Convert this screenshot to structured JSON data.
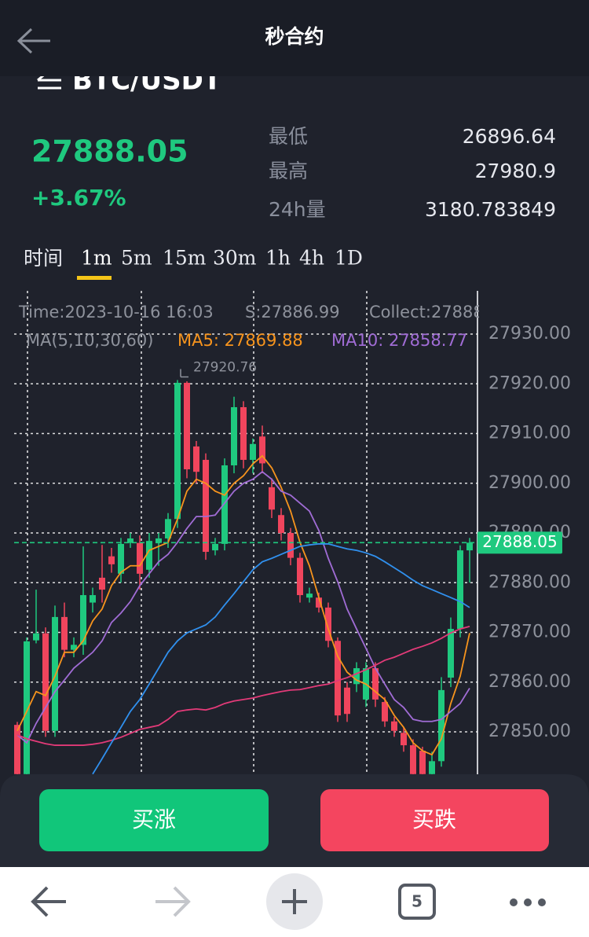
{
  "header": {
    "title": "秒合约"
  },
  "ticker": {
    "symbol": "BTC/USDT",
    "price": "27888.05",
    "change": "+3.67%",
    "stats": [
      {
        "label": "最低",
        "value": "26896.64"
      },
      {
        "label": "最高",
        "value": "27980.9"
      },
      {
        "label": "24h量",
        "value": "3180.783849"
      }
    ]
  },
  "tabs": {
    "label": "时间",
    "intervals": [
      "1m",
      "5m",
      "15m",
      "30m",
      "1h",
      "4h",
      "1D"
    ],
    "active": 0
  },
  "chart_data": {
    "type": "candlestick",
    "info": [
      "Time:2023-10-16 16:03",
      "S:27886.99",
      "Collect:27888"
    ],
    "ma_legend": "MA(5,10,30,60)",
    "up_color": "#1fc97f",
    "down_color": "#f0455d",
    "open": [
      27851.4,
      27841.5,
      27868.4,
      27869.8,
      27850.2,
      27873.1,
      27866.5,
      27867.5,
      27876,
      27881,
      27885.3,
      27881.8,
      27888,
      27888,
      27882.6,
      27888,
      27888.9,
      27892.8,
      27920.2,
      27907.4,
      27904.7,
      27886.5,
      27887.8,
      27903.6,
      27915.3,
      27904.7,
      27909.4,
      27899.2,
      27893.6,
      27890,
      27885,
      27877,
      27877,
      27875,
      27868.3,
      27858.9,
      27859.6,
      27856.5,
      27862.8,
      27856,
      27852.1,
      27849.8,
      27847.3,
      27846.2,
      27841.5,
      27844.1,
      27860.9,
      27870.7,
      27886.5
    ],
    "high": [
      27852,
      27869,
      27878.6,
      27871,
      27875.4,
      27876,
      27869,
      27887.3,
      27879,
      27887.6,
      27887,
      27889,
      27890,
      27889.5,
      27890,
      27890,
      27894,
      27920.76,
      27920.5,
      27908.5,
      27906,
      27889,
      27905,
      27917.4,
      27916.5,
      27909,
      27911.6,
      27901,
      27895,
      27891,
      27886,
      27879,
      27878,
      27876,
      27869,
      27860,
      27864,
      27864,
      27864,
      27857,
      27853,
      27851,
      27848.5,
      27847,
      27846,
      27861,
      27873,
      27887.5,
      27889
    ],
    "low": [
      27838,
      27838,
      27867.8,
      27849,
      27849,
      27865,
      27865,
      27865.5,
      27874,
      27876,
      27882,
      27880,
      27887,
      27878.6,
      27881,
      27883.4,
      27887,
      27891,
      27901,
      27900,
      27884.6,
      27885.5,
      27886.5,
      27902,
      27903,
      27902,
      27902,
      27893,
      27888.5,
      27883.5,
      27876,
      27876,
      27874,
      27867,
      27852,
      27852,
      27858,
      27855,
      27855,
      27851,
      27849,
      27846,
      27840,
      27840,
      27840,
      27843,
      27859,
      27869,
      27880
    ],
    "close": [
      27841.5,
      27868.2,
      27869.8,
      27850.2,
      27873.1,
      27866.5,
      27867.5,
      27877.5,
      27877.5,
      27878.6,
      27883.7,
      27887.8,
      27888.9,
      27881.8,
      27888.4,
      27888.9,
      27892.8,
      27920.2,
      27902.8,
      27902.3,
      27886.2,
      27887.8,
      27903.6,
      27915.3,
      27904.7,
      27907.9,
      27904,
      27894.7,
      27890,
      27885,
      27877.5,
      27877.8,
      27875,
      27868.3,
      27853.3,
      27853.6,
      27862.8,
      27862.8,
      27856.5,
      27852.1,
      27850.2,
      27847.3,
      27841.5,
      27841.5,
      27844.1,
      27858.4,
      27870.7,
      27886.5,
      27888.05
    ],
    "series": [
      {
        "name": "MA5: 27869.88",
        "color": "#f7941d",
        "values": [
          27850.2,
          27854.1,
          27858.1,
          27857.3,
          27861.2,
          27866.0,
          27866.0,
          27868.3,
          27872.3,
          27874.7,
          27879.4,
          27882.1,
          27883.4,
          27883.4,
          27886.5,
          27887.3,
          27888.1,
          27892.8,
          27898.4,
          27900.8,
          27900.0,
          27898.4,
          27897.6,
          27900.0,
          27901.5,
          27903.9,
          27905.5,
          27903.1,
          27899.2,
          27894.4,
          27888.1,
          27883.4,
          27877.0,
          27870.7,
          27865.2,
          27862.0,
          27860.4,
          27859.6,
          27858.1,
          27856.5,
          27853.3,
          27850.9,
          27847.8,
          27846.2,
          27845.4,
          27848.6,
          27855.7,
          27861.2,
          27869.88
        ]
      },
      {
        "name": "MA10: 27858.77",
        "color": "#a06cd5",
        "values": [
          27849.4,
          27847.8,
          27851.7,
          27854.9,
          27858.1,
          27860.4,
          27862.8,
          27864.4,
          27866.0,
          27868.3,
          27872.0,
          27873.9,
          27876.2,
          27879.4,
          27881.8,
          27884.2,
          27885.7,
          27888.1,
          27890.9,
          27893.3,
          27893.3,
          27893.6,
          27896.0,
          27898.4,
          27900.0,
          27900.8,
          27902.3,
          27900.8,
          27898.4,
          27897.6,
          27896.0,
          27894.4,
          27890.5,
          27884.9,
          27880.2,
          27874.7,
          27870.7,
          27866.8,
          27862.8,
          27859.6,
          27856.5,
          27854.9,
          27852.5,
          27852.1,
          27852.1,
          27852.5,
          27854.1,
          27855.7,
          27858.77
        ]
      },
      {
        "color": "#e23a78",
        "values": [
          27849.4,
          27848.6,
          27848.1,
          27847.6,
          27847.3,
          27847.3,
          27847.3,
          27847.3,
          27847.5,
          27847.8,
          27848.3,
          27848.9,
          27849.7,
          27850.5,
          27850.9,
          27851.3,
          27852.5,
          27854.1,
          27854.4,
          27854.6,
          27854.4,
          27854.9,
          27855.7,
          27856.2,
          27856.5,
          27856.8,
          27857.3,
          27857.7,
          27858.1,
          27858.4,
          27858.5,
          27858.9,
          27859.3,
          27859.6,
          27860.3,
          27860.9,
          27861.7,
          27862.5,
          27863.4,
          27864.4,
          27865.0,
          27865.8,
          27866.6,
          27867.2,
          27867.9,
          27868.8,
          27869.9,
          27870.7,
          27871.2
        ]
      },
      {
        "color": "#3090ee",
        "values": [
          null,
          null,
          null,
          null,
          null,
          null,
          null,
          null,
          27841.5,
          27844.6,
          27847.8,
          27850.9,
          27854.1,
          27856.5,
          27859.6,
          27862.8,
          27866.0,
          27868.3,
          27869.9,
          27870.7,
          27871.5,
          27873.1,
          27875.5,
          27877.8,
          27880.2,
          27882.6,
          27884.2,
          27884.9,
          27885.7,
          27886.5,
          27887.3,
          27887.6,
          27887.8,
          27887.8,
          27887.3,
          27886.8,
          27886.5,
          27886.0,
          27885.3,
          27884.2,
          27883.0,
          27881.8,
          27880.5,
          27879.4,
          27878.6,
          27877.8,
          27877.0,
          27876.2,
          27875.0
        ]
      }
    ],
    "high_annotation": 27920.76,
    "last_price": 27888.05,
    "ylim": [
      27840,
      27938
    ],
    "yticks": [
      {
        "value": 27850,
        "label": "27850.00"
      },
      {
        "value": 27860,
        "label": "27860.00"
      },
      {
        "value": 27870,
        "label": "27870.00"
      },
      {
        "value": 27880,
        "label": "27880.00"
      },
      {
        "value": 27890,
        "label": "27890.00"
      },
      {
        "value": 27900,
        "label": "27900.00"
      },
      {
        "value": 27910,
        "label": "27910.00"
      },
      {
        "value": 27920,
        "label": "27920.00"
      },
      {
        "value": 27930,
        "label": "27930.00"
      }
    ],
    "grid": true
  },
  "actions": {
    "buy_up": "买涨",
    "buy_down": "买跌"
  },
  "browser_bar": {
    "tab_count": "5"
  }
}
